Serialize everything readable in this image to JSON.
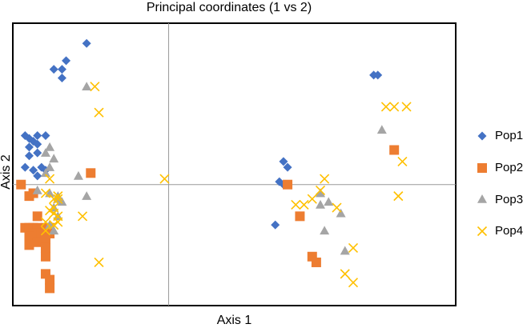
{
  "chart_data": {
    "type": "scatter",
    "title": "Principal coordinates (1 vs 2)",
    "xlabel": "Axis 1",
    "ylabel": "Axis 2",
    "xlim": [
      -0.38,
      0.7
    ],
    "ylim": [
      -0.42,
      0.56
    ],
    "legend_position": "right",
    "grid": false,
    "series": [
      {
        "name": "Pop1",
        "marker": "diamond",
        "color": "#4472C4",
        "points": [
          [
            -0.2,
            0.49
          ],
          [
            -0.25,
            0.43
          ],
          [
            -0.28,
            0.4
          ],
          [
            -0.26,
            0.4
          ],
          [
            -0.26,
            0.37
          ],
          [
            -0.35,
            0.17
          ],
          [
            -0.34,
            0.16
          ],
          [
            -0.32,
            0.17
          ],
          [
            -0.3,
            0.17
          ],
          [
            -0.33,
            0.15
          ],
          [
            -0.32,
            0.14
          ],
          [
            -0.34,
            0.13
          ],
          [
            -0.32,
            0.11
          ],
          [
            -0.34,
            0.1
          ],
          [
            -0.35,
            0.06
          ],
          [
            -0.33,
            0.05
          ],
          [
            -0.31,
            0.06
          ],
          [
            -0.3,
            0.05
          ],
          [
            -0.32,
            0.03
          ],
          [
            0.5,
            0.38
          ],
          [
            0.51,
            0.38
          ],
          [
            0.28,
            0.08
          ],
          [
            0.29,
            0.06
          ],
          [
            0.27,
            0.01
          ],
          [
            0.28,
            0.0
          ],
          [
            0.26,
            -0.14
          ]
        ]
      },
      {
        "name": "Pop2",
        "marker": "square",
        "color": "#ED7D31",
        "points": [
          [
            -0.36,
            0.0
          ],
          [
            -0.34,
            -0.04
          ],
          [
            -0.33,
            -0.03
          ],
          [
            -0.19,
            0.04
          ],
          [
            -0.32,
            -0.11
          ],
          [
            -0.35,
            -0.15
          ],
          [
            -0.34,
            -0.15
          ],
          [
            -0.33,
            -0.15
          ],
          [
            -0.32,
            -0.15
          ],
          [
            -0.3,
            -0.15
          ],
          [
            -0.29,
            -0.15
          ],
          [
            -0.33,
            -0.17
          ],
          [
            -0.31,
            -0.17
          ],
          [
            -0.29,
            -0.17
          ],
          [
            -0.34,
            -0.18
          ],
          [
            -0.3,
            -0.19
          ],
          [
            -0.32,
            -0.2
          ],
          [
            -0.34,
            -0.21
          ],
          [
            -0.3,
            -0.22
          ],
          [
            -0.3,
            -0.25
          ],
          [
            -0.3,
            -0.31
          ],
          [
            -0.29,
            -0.33
          ],
          [
            -0.29,
            -0.36
          ],
          [
            0.55,
            0.12
          ],
          [
            0.29,
            0.0
          ],
          [
            0.32,
            -0.11
          ],
          [
            0.35,
            -0.25
          ],
          [
            0.36,
            -0.27
          ]
        ]
      },
      {
        "name": "Pop3",
        "marker": "triangle",
        "color": "#A5A5A5",
        "points": [
          [
            -0.2,
            0.34
          ],
          [
            -0.29,
            0.13
          ],
          [
            -0.3,
            0.11
          ],
          [
            -0.28,
            0.09
          ],
          [
            -0.29,
            0.06
          ],
          [
            -0.3,
            0.04
          ],
          [
            -0.22,
            0.03
          ],
          [
            -0.29,
            -0.03
          ],
          [
            -0.32,
            -0.02
          ],
          [
            -0.27,
            -0.04
          ],
          [
            -0.27,
            -0.05
          ],
          [
            -0.26,
            -0.06
          ],
          [
            -0.2,
            -0.04
          ],
          [
            -0.28,
            -0.08
          ],
          [
            -0.27,
            -0.11
          ],
          [
            -0.29,
            -0.14
          ],
          [
            -0.28,
            -0.16
          ],
          [
            0.52,
            0.19
          ],
          [
            0.37,
            -0.03
          ],
          [
            0.39,
            -0.06
          ],
          [
            0.37,
            -0.07
          ],
          [
            0.42,
            -0.1
          ],
          [
            0.38,
            -0.16
          ],
          [
            0.43,
            -0.23
          ]
        ]
      },
      {
        "name": "Pop4",
        "marker": "x",
        "color": "#FFC000",
        "points": [
          [
            -0.18,
            0.34
          ],
          [
            -0.17,
            0.25
          ],
          [
            -0.29,
            0.02
          ],
          [
            -0.3,
            -0.03
          ],
          [
            -0.27,
            -0.04
          ],
          [
            -0.28,
            -0.05
          ],
          [
            -0.27,
            -0.05
          ],
          [
            -0.28,
            -0.08
          ],
          [
            -0.29,
            -0.09
          ],
          [
            -0.28,
            -0.1
          ],
          [
            -0.3,
            -0.13
          ],
          [
            -0.27,
            -0.11
          ],
          [
            -0.27,
            -0.13
          ],
          [
            -0.21,
            -0.11
          ],
          [
            -0.28,
            -0.14
          ],
          [
            -0.3,
            -0.16
          ],
          [
            -0.17,
            -0.27
          ],
          [
            -0.01,
            0.02
          ],
          [
            0.53,
            0.27
          ],
          [
            0.55,
            0.27
          ],
          [
            0.58,
            0.27
          ],
          [
            0.57,
            0.08
          ],
          [
            0.38,
            0.02
          ],
          [
            0.37,
            -0.02
          ],
          [
            0.35,
            -0.05
          ],
          [
            0.33,
            -0.07
          ],
          [
            0.31,
            -0.07
          ],
          [
            0.41,
            -0.08
          ],
          [
            0.56,
            -0.04
          ],
          [
            0.45,
            -0.22
          ],
          [
            0.43,
            -0.31
          ],
          [
            0.45,
            -0.34
          ]
        ]
      }
    ]
  }
}
